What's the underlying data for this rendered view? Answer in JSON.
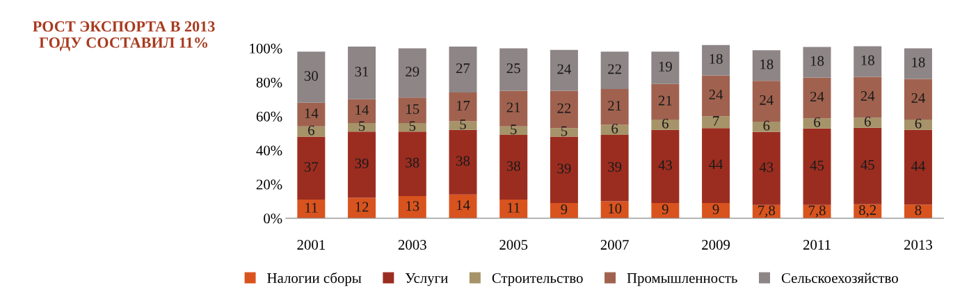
{
  "chart_data": {
    "type": "bar",
    "stacked": true,
    "title": "РОСТ ЭКСПОРТА В 2013\nГОДУ СОСТАВИЛ 11%",
    "categories": [
      "2001",
      null,
      "2003",
      null,
      "2005",
      null,
      "2007",
      null,
      "2009",
      null,
      "2011",
      null,
      "2013"
    ],
    "ylim": [
      0,
      102
    ],
    "yticks": [
      {
        "value": 0,
        "label": "0%"
      },
      {
        "value": 20,
        "label": "20%"
      },
      {
        "value": 40,
        "label": "40%"
      },
      {
        "value": 60,
        "label": "60%"
      },
      {
        "value": 80,
        "label": "80%"
      },
      {
        "value": 100,
        "label": "100%"
      }
    ],
    "grid": false,
    "legend": "bottom",
    "series": [
      {
        "name": "Налогии сборы",
        "color": "#d9531e",
        "values": [
          11,
          12,
          13,
          14,
          11,
          9,
          10,
          9,
          9,
          7.8,
          7.8,
          8.2,
          8
        ],
        "value_labels": [
          "11",
          "12",
          "13",
          "14",
          "11",
          "9",
          "10",
          "9",
          "9",
          "7,8",
          "7,8",
          "8,2",
          "8"
        ]
      },
      {
        "name": "Услуги",
        "color": "#9b2d20",
        "values": [
          37,
          39,
          38,
          38,
          38,
          39,
          39,
          43,
          44,
          43,
          45,
          45,
          44
        ],
        "value_labels": [
          "37",
          "39",
          "38",
          "38",
          "38",
          "39",
          "39",
          "43",
          "44",
          "43",
          "45",
          "45",
          "44"
        ]
      },
      {
        "name": "Строительство",
        "color": "#a69369",
        "values": [
          6,
          5,
          5,
          5,
          5,
          5,
          6,
          6,
          7,
          6,
          6,
          6,
          6
        ],
        "value_labels": [
          "6",
          "5",
          "5",
          "5",
          "5",
          "5",
          "6",
          "6",
          "7",
          "6",
          "6",
          "6",
          "6"
        ]
      },
      {
        "name": "Промышленность",
        "color": "#a0624f",
        "values": [
          14,
          14,
          15,
          17,
          21,
          22,
          21,
          21,
          24,
          24,
          24,
          24,
          24
        ],
        "value_labels": [
          "14",
          "14",
          "15",
          "17",
          "21",
          "22",
          "21",
          "21",
          "24",
          "24",
          "24",
          "24",
          "24"
        ]
      },
      {
        "name": "Сельскоехозяйство",
        "color": "#8e8587",
        "values": [
          30,
          31,
          29,
          27,
          25,
          24,
          22,
          19,
          18,
          18,
          18,
          18,
          18
        ],
        "value_labels": [
          "30",
          "31",
          "29",
          "27",
          "25",
          "24",
          "22",
          "19",
          "18",
          "18",
          "18",
          "18",
          "18"
        ]
      }
    ]
  }
}
